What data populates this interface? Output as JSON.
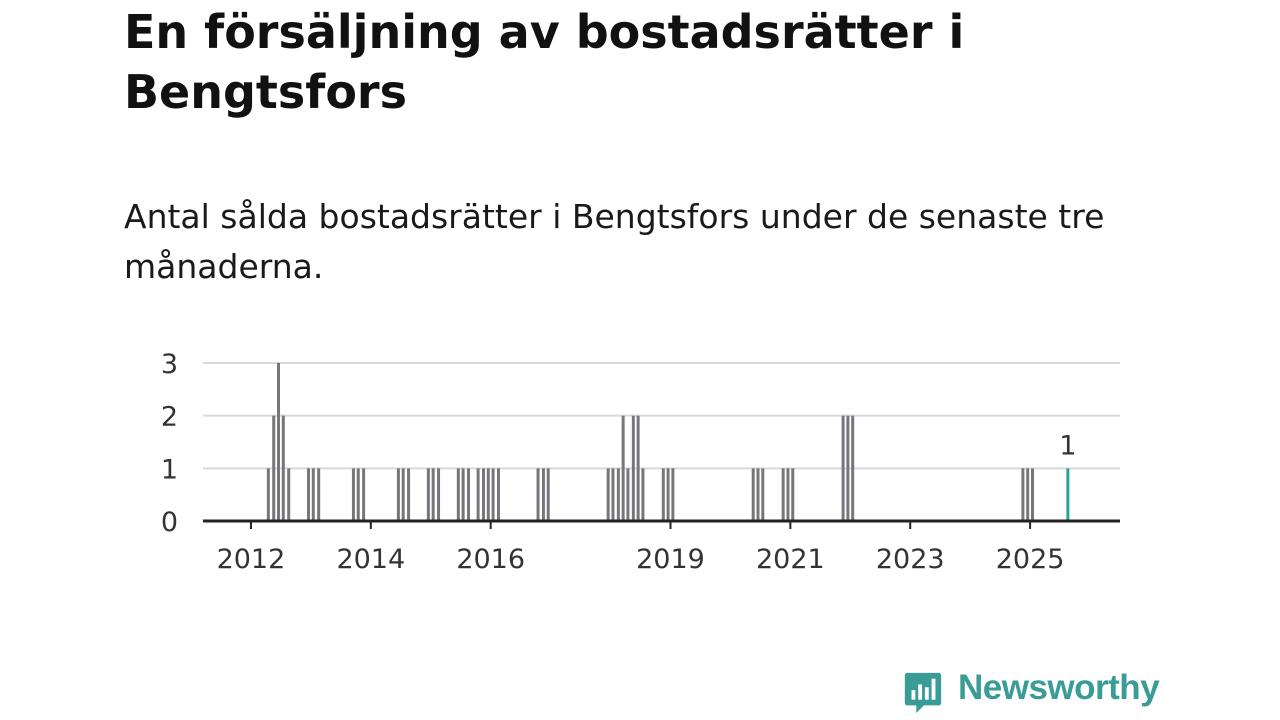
{
  "title": "En försäljning av bostadsrätter i Bengtsfors",
  "subtitle": "Antal sålda bostadsrätter i Bengtsfors under de senaste tre månaderna.",
  "brand": {
    "name": "Newsworthy",
    "color": "#3a9c97",
    "icon": "newsworthy-logo-icon"
  },
  "colors": {
    "bar": "#76767b",
    "highlight": "#27a39c",
    "grid": "#d9d9d9",
    "axis": "#222222"
  },
  "chart_data": {
    "type": "bar",
    "title": "En försäljning av bostadsrätter i Bengtsfors",
    "subtitle": "Antal sålda bostadsrätter i Bengtsfors under de senaste tre månaderna.",
    "xlabel": "",
    "ylabel": "",
    "ylim": [
      0,
      3
    ],
    "xlim": [
      2011.2,
      2026.5
    ],
    "yticks": [
      0,
      1,
      2,
      3
    ],
    "xticks": [
      {
        "value": 2012,
        "label": "2012"
      },
      {
        "value": 2014,
        "label": "2014"
      },
      {
        "value": 2016,
        "label": "2016"
      },
      {
        "value": 2019,
        "label": "2019"
      },
      {
        "value": 2021,
        "label": "2021"
      },
      {
        "value": 2023,
        "label": "2023"
      },
      {
        "value": 2025,
        "label": "2025"
      }
    ],
    "grid": true,
    "series": [
      {
        "name": "Antal sålda",
        "points": [
          {
            "x": 2012.29,
            "y": 1
          },
          {
            "x": 2012.38,
            "y": 2
          },
          {
            "x": 2012.46,
            "y": 3
          },
          {
            "x": 2012.54,
            "y": 2
          },
          {
            "x": 2012.63,
            "y": 1
          },
          {
            "x": 2012.96,
            "y": 1
          },
          {
            "x": 2013.04,
            "y": 1
          },
          {
            "x": 2013.13,
            "y": 1
          },
          {
            "x": 2013.71,
            "y": 1
          },
          {
            "x": 2013.79,
            "y": 1
          },
          {
            "x": 2013.88,
            "y": 1
          },
          {
            "x": 2014.46,
            "y": 1
          },
          {
            "x": 2014.54,
            "y": 1
          },
          {
            "x": 2014.63,
            "y": 1
          },
          {
            "x": 2014.96,
            "y": 1
          },
          {
            "x": 2015.04,
            "y": 1
          },
          {
            "x": 2015.13,
            "y": 1
          },
          {
            "x": 2015.46,
            "y": 1
          },
          {
            "x": 2015.54,
            "y": 1
          },
          {
            "x": 2015.63,
            "y": 1
          },
          {
            "x": 2015.79,
            "y": 1
          },
          {
            "x": 2015.88,
            "y": 1
          },
          {
            "x": 2015.96,
            "y": 1
          },
          {
            "x": 2016.04,
            "y": 1
          },
          {
            "x": 2016.13,
            "y": 1
          },
          {
            "x": 2016.79,
            "y": 1
          },
          {
            "x": 2016.88,
            "y": 1
          },
          {
            "x": 2016.96,
            "y": 1
          },
          {
            "x": 2017.96,
            "y": 1
          },
          {
            "x": 2018.04,
            "y": 1
          },
          {
            "x": 2018.13,
            "y": 1
          },
          {
            "x": 2018.21,
            "y": 2
          },
          {
            "x": 2018.29,
            "y": 1
          },
          {
            "x": 2018.38,
            "y": 2
          },
          {
            "x": 2018.46,
            "y": 2
          },
          {
            "x": 2018.54,
            "y": 1
          },
          {
            "x": 2018.88,
            "y": 1
          },
          {
            "x": 2018.96,
            "y": 1
          },
          {
            "x": 2019.04,
            "y": 1
          },
          {
            "x": 2020.38,
            "y": 1
          },
          {
            "x": 2020.46,
            "y": 1
          },
          {
            "x": 2020.54,
            "y": 1
          },
          {
            "x": 2020.88,
            "y": 1
          },
          {
            "x": 2020.96,
            "y": 1
          },
          {
            "x": 2021.04,
            "y": 1
          },
          {
            "x": 2021.88,
            "y": 2
          },
          {
            "x": 2021.96,
            "y": 2
          },
          {
            "x": 2022.04,
            "y": 2
          },
          {
            "x": 2024.88,
            "y": 1
          },
          {
            "x": 2024.96,
            "y": 1
          },
          {
            "x": 2025.04,
            "y": 1
          },
          {
            "x": 2025.63,
            "y": 1,
            "highlight": true,
            "label": "1"
          }
        ]
      }
    ]
  }
}
